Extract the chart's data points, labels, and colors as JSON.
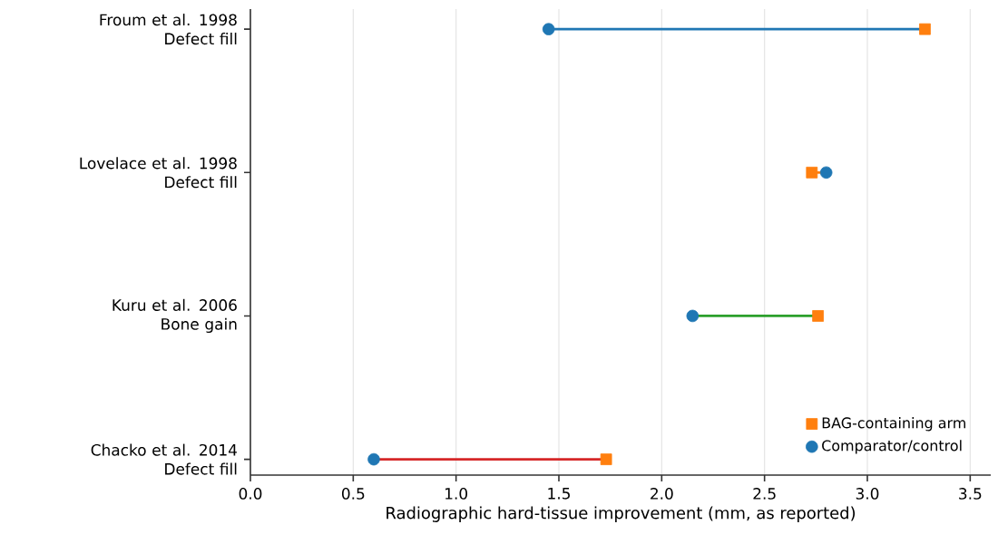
{
  "chart_data": {
    "type": "scatter",
    "orientation": "horizontal",
    "xlabel": "Radiographic hard-tissue improvement (mm, as reported)",
    "categories": [
      "Froum et al. 1998\nDefect fill",
      "Lovelace et al. 1998\nDefect fill",
      "Kuru et al. 2006\nBone gain",
      "Chacko et al. 2014\nDefect fill"
    ],
    "colors": [
      "#1f77b4",
      "#ff7f0e",
      "#2ca02c",
      "#d62728"
    ],
    "xlim": [
      0,
      3.6
    ],
    "xticks": [
      {
        "value": 0,
        "label": "0.0"
      },
      {
        "value": 0.5,
        "label": "0.5"
      },
      {
        "value": 1,
        "label": "1.0"
      },
      {
        "value": 1.5,
        "label": "1.5"
      },
      {
        "value": 2,
        "label": "2.0"
      },
      {
        "value": 2.5,
        "label": "2.5"
      },
      {
        "value": 3,
        "label": "3.0"
      },
      {
        "value": 3.5,
        "label": "3.5"
      }
    ],
    "grid": "x",
    "legend": "bottom right",
    "series": [
      {
        "name": "Comparator/control",
        "color": "#1f77b4",
        "marker": "circle",
        "values": [
          1.45,
          2.8,
          2.15,
          0.6
        ]
      },
      {
        "name": "BAG-containing arm",
        "color": "#ff7f0e",
        "marker": "square",
        "values": [
          3.28,
          2.73,
          2.76,
          1.73
        ]
      }
    ]
  }
}
